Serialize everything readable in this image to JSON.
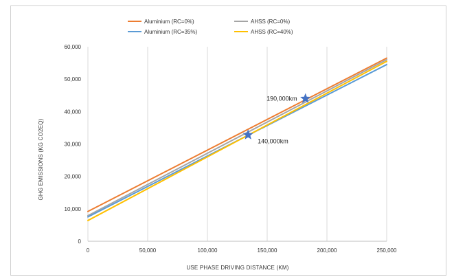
{
  "chart_data": {
    "type": "line",
    "title": "",
    "xlabel": "USE PHASE DRIVING DISTANCE (KM)",
    "ylabel": "GHG EMISSIONS (KG CO2EQ)",
    "xlim": [
      0,
      250000
    ],
    "ylim": [
      0,
      60000
    ],
    "x_ticks": [
      "0",
      "50,000",
      "100,000",
      "150,000",
      "200,000",
      "250,000"
    ],
    "y_ticks": [
      "0",
      "10,000",
      "20,000",
      "30,000",
      "40,000",
      "50,000",
      "60,000"
    ],
    "grid": "vertical",
    "legend_position": "top",
    "series": [
      {
        "name": "Aluminium (RC=0%)",
        "color": "#ED7D31",
        "x": [
          0,
          250000
        ],
        "y": [
          9200,
          56500
        ]
      },
      {
        "name": "AHSS (RC=0%)",
        "color": "#A5A5A5",
        "x": [
          0,
          250000
        ],
        "y": [
          7900,
          56000
        ]
      },
      {
        "name": "Aluminium (RC=35%)",
        "color": "#5B9BD5",
        "x": [
          0,
          250000
        ],
        "y": [
          7500,
          54500
        ]
      },
      {
        "name": "AHSS (RC=40%)",
        "color": "#FFC000",
        "x": [
          0,
          250000
        ],
        "y": [
          6400,
          55500
        ]
      }
    ],
    "annotations": [
      {
        "label": "190,000km",
        "x": 182000,
        "y": 44000,
        "marker": "star"
      },
      {
        "label": "140,000km",
        "x": 134000,
        "y": 32800,
        "marker": "star"
      }
    ],
    "marker_color": "#4472C4"
  }
}
